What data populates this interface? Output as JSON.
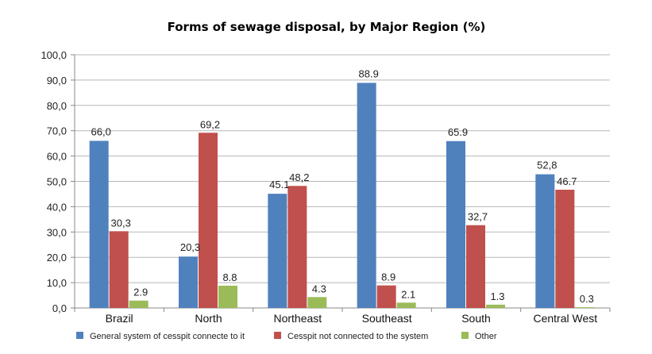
{
  "chart_data": {
    "type": "bar",
    "title": "Forms of sewage disposal, by Major Region (%)",
    "xlabel": "",
    "ylabel": "",
    "ylim": [
      0,
      100
    ],
    "yticks": [
      "0,0",
      "10,0",
      "20,0",
      "30,0",
      "40,0",
      "50,0",
      "60,0",
      "70,0",
      "80,0",
      "90,0",
      "100,0"
    ],
    "grid": true,
    "legend_position": "bottom",
    "categories": [
      "Brazil",
      "North",
      "Northeast",
      "Southeast",
      "South",
      "Central West"
    ],
    "series": [
      {
        "name": "General system of cesspit connecte to it",
        "color": "#4f81bd",
        "values": [
          66.0,
          20.3,
          45.1,
          88.9,
          65.9,
          52.8
        ],
        "labels": [
          "66,0",
          "20,3",
          "45.1",
          "88.9",
          "65.9",
          "52,8"
        ]
      },
      {
        "name": "Cesspit not connected to the system",
        "color": "#c0504d",
        "values": [
          30.3,
          69.2,
          48.2,
          8.9,
          32.7,
          46.7
        ],
        "labels": [
          "30,3",
          "69,2",
          "48,2",
          "8.9",
          "32,7",
          "46.7"
        ]
      },
      {
        "name": "Other",
        "color": "#9bbb59",
        "values": [
          2.9,
          8.8,
          4.3,
          2.1,
          1.3,
          0.3
        ],
        "labels": [
          "2.9",
          "8.8",
          "4.3",
          "2.1",
          "1.3",
          "0.3"
        ]
      }
    ]
  }
}
